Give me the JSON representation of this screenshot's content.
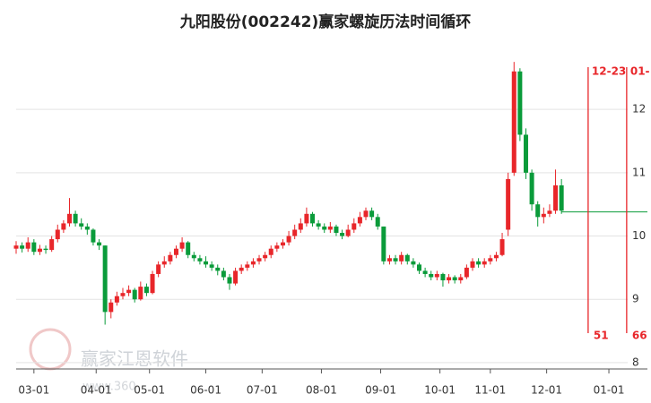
{
  "chart_data": {
    "type": "candlestick",
    "title": "九阳股份(002242)赢家螺旋历法时间循环",
    "watermark": "赢家江恩软件",
    "watermark_url": "www.360",
    "up_color": "#e8262a",
    "down_color": "#0a9b3a",
    "xlim": [
      0,
      213
    ],
    "ylim": [
      7.9,
      12.95
    ],
    "yticks": [
      8,
      9,
      10,
      11,
      12
    ],
    "grid": true,
    "xticks": [
      {
        "value": 6,
        "label": "03-01"
      },
      {
        "value": 27,
        "label": "04-01"
      },
      {
        "value": 45,
        "label": "05-01"
      },
      {
        "value": 64,
        "label": "06-01"
      },
      {
        "value": 83,
        "label": "07-01"
      },
      {
        "value": 103,
        "label": "08-01"
      },
      {
        "value": 123,
        "label": "09-01"
      },
      {
        "value": 143,
        "label": "10-01"
      },
      {
        "value": 160,
        "label": "11-01"
      },
      {
        "value": 179,
        "label": "12-01"
      },
      {
        "value": 200,
        "label": "01-01"
      }
    ],
    "x": [
      0,
      2,
      4,
      6,
      8,
      10,
      12,
      14,
      16,
      18,
      20,
      22,
      24,
      26,
      28,
      30,
      32,
      34,
      36,
      38,
      40,
      42,
      44,
      46,
      48,
      50,
      52,
      54,
      56,
      58,
      60,
      62,
      64,
      66,
      68,
      70,
      72,
      74,
      76,
      78,
      80,
      82,
      84,
      86,
      88,
      90,
      92,
      94,
      96,
      98,
      100,
      102,
      104,
      106,
      108,
      110,
      112,
      114,
      116,
      118,
      120,
      122,
      124,
      126,
      128,
      130,
      132,
      134,
      136,
      138,
      140,
      142,
      144,
      146,
      148,
      150,
      152,
      154,
      156,
      158,
      160,
      162,
      164,
      166,
      168,
      170,
      172,
      174,
      176,
      178,
      180,
      182,
      184
    ],
    "ohlc": [
      [
        9.8,
        9.92,
        9.72,
        9.85
      ],
      [
        9.85,
        9.9,
        9.74,
        9.8
      ],
      [
        9.8,
        9.98,
        9.75,
        9.9
      ],
      [
        9.9,
        9.95,
        9.7,
        9.75
      ],
      [
        9.75,
        9.86,
        9.7,
        9.8
      ],
      [
        9.8,
        9.85,
        9.72,
        9.78
      ],
      [
        9.78,
        10.0,
        9.75,
        9.95
      ],
      [
        9.95,
        10.18,
        9.9,
        10.1
      ],
      [
        10.1,
        10.25,
        10.05,
        10.2
      ],
      [
        10.2,
        10.6,
        10.15,
        10.35
      ],
      [
        10.35,
        10.4,
        10.15,
        10.2
      ],
      [
        10.2,
        10.28,
        10.1,
        10.15
      ],
      [
        10.15,
        10.2,
        10.02,
        10.1
      ],
      [
        10.1,
        10.12,
        9.85,
        9.9
      ],
      [
        9.9,
        9.95,
        9.78,
        9.85
      ],
      [
        9.85,
        9.85,
        8.6,
        8.8
      ],
      [
        8.8,
        9.0,
        8.7,
        8.95
      ],
      [
        8.95,
        9.12,
        8.9,
        9.05
      ],
      [
        9.05,
        9.18,
        9.0,
        9.1
      ],
      [
        9.1,
        9.22,
        9.05,
        9.15
      ],
      [
        9.15,
        9.18,
        8.95,
        9.0
      ],
      [
        9.0,
        9.28,
        8.98,
        9.2
      ],
      [
        9.2,
        9.25,
        9.05,
        9.1
      ],
      [
        9.1,
        9.45,
        9.08,
        9.4
      ],
      [
        9.4,
        9.6,
        9.35,
        9.55
      ],
      [
        9.55,
        9.68,
        9.5,
        9.6
      ],
      [
        9.6,
        9.75,
        9.55,
        9.7
      ],
      [
        9.7,
        9.85,
        9.65,
        9.8
      ],
      [
        9.8,
        9.98,
        9.75,
        9.9
      ],
      [
        9.9,
        9.92,
        9.65,
        9.7
      ],
      [
        9.7,
        9.75,
        9.6,
        9.65
      ],
      [
        9.65,
        9.7,
        9.55,
        9.6
      ],
      [
        9.6,
        9.68,
        9.5,
        9.55
      ],
      [
        9.55,
        9.6,
        9.45,
        9.5
      ],
      [
        9.5,
        9.55,
        9.38,
        9.45
      ],
      [
        9.45,
        9.5,
        9.3,
        9.35
      ],
      [
        9.35,
        9.4,
        9.15,
        9.25
      ],
      [
        9.25,
        9.5,
        9.22,
        9.45
      ],
      [
        9.45,
        9.55,
        9.4,
        9.5
      ],
      [
        9.5,
        9.6,
        9.45,
        9.55
      ],
      [
        9.55,
        9.65,
        9.5,
        9.6
      ],
      [
        9.6,
        9.7,
        9.55,
        9.65
      ],
      [
        9.65,
        9.75,
        9.6,
        9.7
      ],
      [
        9.7,
        9.85,
        9.65,
        9.8
      ],
      [
        9.8,
        9.9,
        9.75,
        9.85
      ],
      [
        9.85,
        9.95,
        9.8,
        9.9
      ],
      [
        9.9,
        10.08,
        9.85,
        10.0
      ],
      [
        10.0,
        10.18,
        9.95,
        10.1
      ],
      [
        10.1,
        10.28,
        10.05,
        10.2
      ],
      [
        10.2,
        10.45,
        10.15,
        10.35
      ],
      [
        10.35,
        10.38,
        10.15,
        10.2
      ],
      [
        10.2,
        10.25,
        10.1,
        10.15
      ],
      [
        10.15,
        10.2,
        10.05,
        10.1
      ],
      [
        10.1,
        10.22,
        10.05,
        10.15
      ],
      [
        10.15,
        10.18,
        10.0,
        10.05
      ],
      [
        10.05,
        10.1,
        9.95,
        10.0
      ],
      [
        10.0,
        10.18,
        9.98,
        10.1
      ],
      [
        10.1,
        10.28,
        10.05,
        10.2
      ],
      [
        10.2,
        10.38,
        10.15,
        10.3
      ],
      [
        10.3,
        10.45,
        10.25,
        10.4
      ],
      [
        10.4,
        10.45,
        10.25,
        10.3
      ],
      [
        10.3,
        10.35,
        10.1,
        10.15
      ],
      [
        10.15,
        10.15,
        9.55,
        9.6
      ],
      [
        9.6,
        9.7,
        9.55,
        9.65
      ],
      [
        9.65,
        9.7,
        9.55,
        9.6
      ],
      [
        9.6,
        9.75,
        9.55,
        9.7
      ],
      [
        9.7,
        9.72,
        9.55,
        9.6
      ],
      [
        9.6,
        9.65,
        9.5,
        9.55
      ],
      [
        9.55,
        9.58,
        9.4,
        9.45
      ],
      [
        9.45,
        9.5,
        9.35,
        9.4
      ],
      [
        9.4,
        9.45,
        9.3,
        9.35
      ],
      [
        9.35,
        9.45,
        9.3,
        9.4
      ],
      [
        9.4,
        9.42,
        9.2,
        9.3
      ],
      [
        9.3,
        9.4,
        9.25,
        9.35
      ],
      [
        9.35,
        9.38,
        9.25,
        9.3
      ],
      [
        9.3,
        9.4,
        9.25,
        9.35
      ],
      [
        9.35,
        9.55,
        9.32,
        9.5
      ],
      [
        9.5,
        9.65,
        9.45,
        9.6
      ],
      [
        9.6,
        9.65,
        9.5,
        9.55
      ],
      [
        9.55,
        9.65,
        9.5,
        9.6
      ],
      [
        9.6,
        9.7,
        9.55,
        9.65
      ],
      [
        9.65,
        9.75,
        9.6,
        9.7
      ],
      [
        9.7,
        10.05,
        9.68,
        9.95
      ],
      [
        10.1,
        11.0,
        10.0,
        10.9
      ],
      [
        11.0,
        12.75,
        10.95,
        12.6
      ],
      [
        12.6,
        12.65,
        11.5,
        11.6
      ],
      [
        11.6,
        11.7,
        10.9,
        11.0
      ],
      [
        11.0,
        11.05,
        10.4,
        10.5
      ],
      [
        10.5,
        10.55,
        10.15,
        10.3
      ],
      [
        10.3,
        10.45,
        10.2,
        10.35
      ],
      [
        10.35,
        10.5,
        10.3,
        10.4
      ],
      [
        10.4,
        11.05,
        10.35,
        10.8
      ],
      [
        10.8,
        10.9,
        10.35,
        10.4
      ]
    ],
    "reference_line": {
      "value": 10.38,
      "from": 184,
      "color": "#0a9b3a"
    },
    "cycle_lines": [
      {
        "x": 193,
        "top_label": "12-23",
        "bottom_label": "51"
      },
      {
        "x": 206,
        "top_label": "01-",
        "bottom_label": "66"
      }
    ],
    "cycle_color": "#e8262a"
  }
}
